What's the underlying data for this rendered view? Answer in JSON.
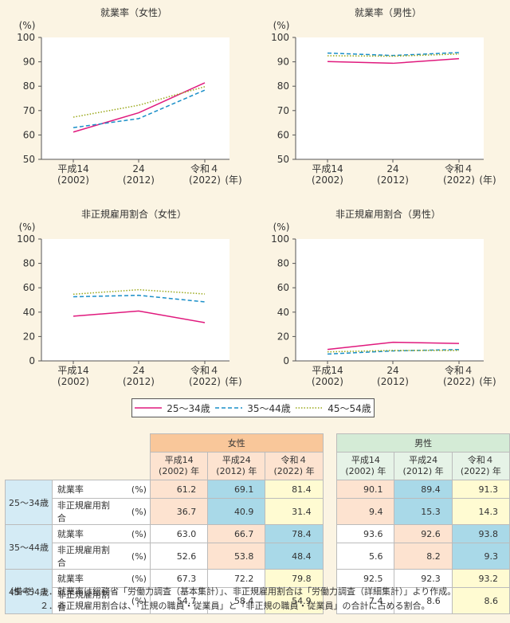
{
  "chart_data": [
    {
      "type": "line",
      "title": "就業率（女性）",
      "unit": "(%)",
      "categories": [
        "平成14\n(2002)",
        "24\n(2012)",
        "令和４\n(2022)"
      ],
      "year_suffix": "(年)",
      "ylim": [
        50,
        100
      ],
      "yticks": [
        50,
        60,
        70,
        80,
        90,
        100
      ],
      "series": [
        {
          "name": "25～34歳",
          "values": [
            61.2,
            69.1,
            81.4
          ]
        },
        {
          "name": "35～44歳",
          "values": [
            63.0,
            66.7,
            78.4
          ]
        },
        {
          "name": "45～54歳",
          "values": [
            67.3,
            72.2,
            79.8
          ]
        }
      ]
    },
    {
      "type": "line",
      "title": "就業率（男性）",
      "unit": "(%)",
      "categories": [
        "平成14\n(2002)",
        "24\n(2012)",
        "令和４\n(2022)"
      ],
      "year_suffix": "(年)",
      "ylim": [
        50,
        100
      ],
      "yticks": [
        50,
        60,
        70,
        80,
        90,
        100
      ],
      "series": [
        {
          "name": "25～34歳",
          "values": [
            90.1,
            89.4,
            91.3
          ]
        },
        {
          "name": "35～44歳",
          "values": [
            93.6,
            92.6,
            93.8
          ]
        },
        {
          "name": "45～54歳",
          "values": [
            92.5,
            92.3,
            93.2
          ]
        }
      ]
    },
    {
      "type": "line",
      "title": "非正規雇用割合（女性）",
      "unit": "(%)",
      "categories": [
        "平成14\n(2002)",
        "24\n(2012)",
        "令和４\n(2022)"
      ],
      "year_suffix": "(年)",
      "ylim": [
        0,
        100
      ],
      "yticks": [
        0,
        20,
        40,
        60,
        80,
        100
      ],
      "series": [
        {
          "name": "25～34歳",
          "values": [
            36.7,
            40.9,
            31.4
          ]
        },
        {
          "name": "35～44歳",
          "values": [
            52.6,
            53.8,
            48.4
          ]
        },
        {
          "name": "45～54歳",
          "values": [
            54.7,
            58.4,
            54.9
          ]
        }
      ]
    },
    {
      "type": "line",
      "title": "非正規雇用割合（男性）",
      "unit": "(%)",
      "categories": [
        "平成14\n(2002)",
        "24\n(2012)",
        "令和４\n(2022)"
      ],
      "year_suffix": "(年)",
      "ylim": [
        0,
        100
      ],
      "yticks": [
        0,
        20,
        40,
        60,
        80,
        100
      ],
      "series": [
        {
          "name": "25～34歳",
          "values": [
            9.4,
            15.3,
            14.3
          ]
        },
        {
          "name": "35～44歳",
          "values": [
            5.6,
            8.2,
            9.3
          ]
        },
        {
          "name": "45～54歳",
          "values": [
            7.4,
            8.6,
            8.6
          ]
        }
      ]
    }
  ],
  "series_styles": [
    {
      "color": "#e0197d",
      "dash": ""
    },
    {
      "color": "#1a8fc8",
      "dash": "5,3"
    },
    {
      "color": "#9aa81a",
      "dash": "1.5,2"
    }
  ],
  "legend": [
    "25～34歳",
    "35～44歳",
    "45～54歳"
  ],
  "table": {
    "female_header": "女性",
    "male_header": "男性",
    "years": [
      "平成14\n(2002) 年",
      "平成24\n(2012) 年",
      "令和４\n(2022) 年"
    ],
    "unit": "(%)",
    "rows": [
      {
        "age": "25～34歳",
        "label": "就業率",
        "female": [
          "61.2",
          "69.1",
          "81.4"
        ],
        "male": [
          "90.1",
          "89.4",
          "91.3"
        ],
        "fc": [
          "o",
          "b",
          "y"
        ],
        "mc": [
          "o",
          "b",
          "y"
        ]
      },
      {
        "age": "",
        "label": "非正規雇用割合",
        "female": [
          "36.7",
          "40.9",
          "31.4"
        ],
        "male": [
          "9.4",
          "15.3",
          "14.3"
        ],
        "fc": [
          "o",
          "b",
          "y"
        ],
        "mc": [
          "o",
          "b",
          "y"
        ]
      },
      {
        "age": "35～44歳",
        "label": "就業率",
        "female": [
          "63.0",
          "66.7",
          "78.4"
        ],
        "male": [
          "93.6",
          "92.6",
          "93.8"
        ],
        "fc": [
          "w",
          "o",
          "b"
        ],
        "mc": [
          "w",
          "o",
          "b"
        ]
      },
      {
        "age": "",
        "label": "非正規雇用割合",
        "female": [
          "52.6",
          "53.8",
          "48.4"
        ],
        "male": [
          "5.6",
          "8.2",
          "9.3"
        ],
        "fc": [
          "w",
          "o",
          "b"
        ],
        "mc": [
          "w",
          "o",
          "b"
        ]
      },
      {
        "age": "45～54歳",
        "label": "就業率",
        "female": [
          "67.3",
          "72.2",
          "79.8"
        ],
        "male": [
          "92.5",
          "92.3",
          "93.2"
        ],
        "fc": [
          "w",
          "w",
          "y"
        ],
        "mc": [
          "w",
          "w",
          "y"
        ]
      },
      {
        "age": "",
        "label": "非正規雇用割合",
        "female": [
          "54.7",
          "58.4",
          "54.9"
        ],
        "male": [
          "7.4",
          "8.6",
          "8.6"
        ],
        "fc": [
          "w",
          "w",
          "y"
        ],
        "mc": [
          "w",
          "w",
          "y"
        ]
      }
    ]
  },
  "notes": [
    "（備考）１．就業率は総務省「労働力調査（基本集計）」、非正規雇用割合は「労働力調査（詳細集計）」より作成。",
    "　　　　２．非正規雇用割合は、「正規の職員・従業員」と「非正規の職員・従業員」の合計に占める割合。"
  ]
}
